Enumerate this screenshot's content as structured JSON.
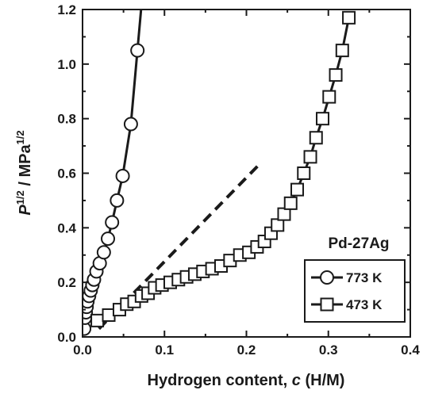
{
  "chart_data": {
    "type": "scatter",
    "title": "",
    "xlabel": {
      "prefix": "Hydrogen content, ",
      "symbol": "c",
      "suffix": " (H/M)"
    },
    "ylabel": {
      "p_base": "P",
      "p_sup": "1/2",
      "mid": " / MPa",
      "unit_sup": "1/2"
    },
    "xlim": [
      0,
      0.4
    ],
    "ylim": [
      0,
      1.2
    ],
    "xticks": [
      0.0,
      0.1,
      0.2,
      0.3,
      0.4
    ],
    "xtick_labels": [
      "0.0",
      "0.1",
      "0.2",
      "0.3",
      "0.4"
    ],
    "yticks": [
      0.0,
      0.2,
      0.4,
      0.6,
      0.8,
      1.0,
      1.2
    ],
    "ytick_labels": [
      "0.0",
      "0.2",
      "0.4",
      "0.6",
      "0.8",
      "1.0",
      "1.2"
    ],
    "grid": false,
    "legend_position": "bottom-right",
    "annotation": "Pd-27Ag",
    "series": [
      {
        "name": "773 K",
        "marker": "circle",
        "x": [
          0.002,
          0.003,
          0.004,
          0.005,
          0.006,
          0.008,
          0.01,
          0.012,
          0.014,
          0.017,
          0.021,
          0.026,
          0.031,
          0.036,
          0.042,
          0.049,
          0.059,
          0.067
        ],
        "y": [
          0.03,
          0.07,
          0.09,
          0.11,
          0.13,
          0.15,
          0.17,
          0.19,
          0.21,
          0.24,
          0.27,
          0.31,
          0.36,
          0.42,
          0.5,
          0.59,
          0.78,
          1.05
        ]
      },
      {
        "name": "473 K",
        "marker": "square",
        "x": [
          0.018,
          0.032,
          0.045,
          0.054,
          0.063,
          0.072,
          0.08,
          0.088,
          0.097,
          0.107,
          0.117,
          0.127,
          0.137,
          0.147,
          0.158,
          0.169,
          0.18,
          0.192,
          0.203,
          0.213,
          0.222,
          0.23,
          0.238,
          0.246,
          0.254,
          0.262,
          0.27,
          0.278,
          0.285,
          0.293,
          0.301,
          0.309,
          0.317,
          0.325
        ],
        "y": [
          0.06,
          0.08,
          0.1,
          0.12,
          0.13,
          0.15,
          0.16,
          0.18,
          0.19,
          0.2,
          0.21,
          0.22,
          0.23,
          0.24,
          0.25,
          0.26,
          0.28,
          0.3,
          0.31,
          0.33,
          0.35,
          0.38,
          0.41,
          0.45,
          0.49,
          0.54,
          0.6,
          0.66,
          0.73,
          0.8,
          0.88,
          0.96,
          1.05,
          1.17
        ]
      }
    ],
    "dashed_line": {
      "x": [
        0.02,
        0.215
      ],
      "y": [
        0.03,
        0.63
      ]
    },
    "colors": {
      "ink": "#1a1a1a",
      "marker_fill": "#ffffff",
      "background": "#ffffff"
    }
  }
}
